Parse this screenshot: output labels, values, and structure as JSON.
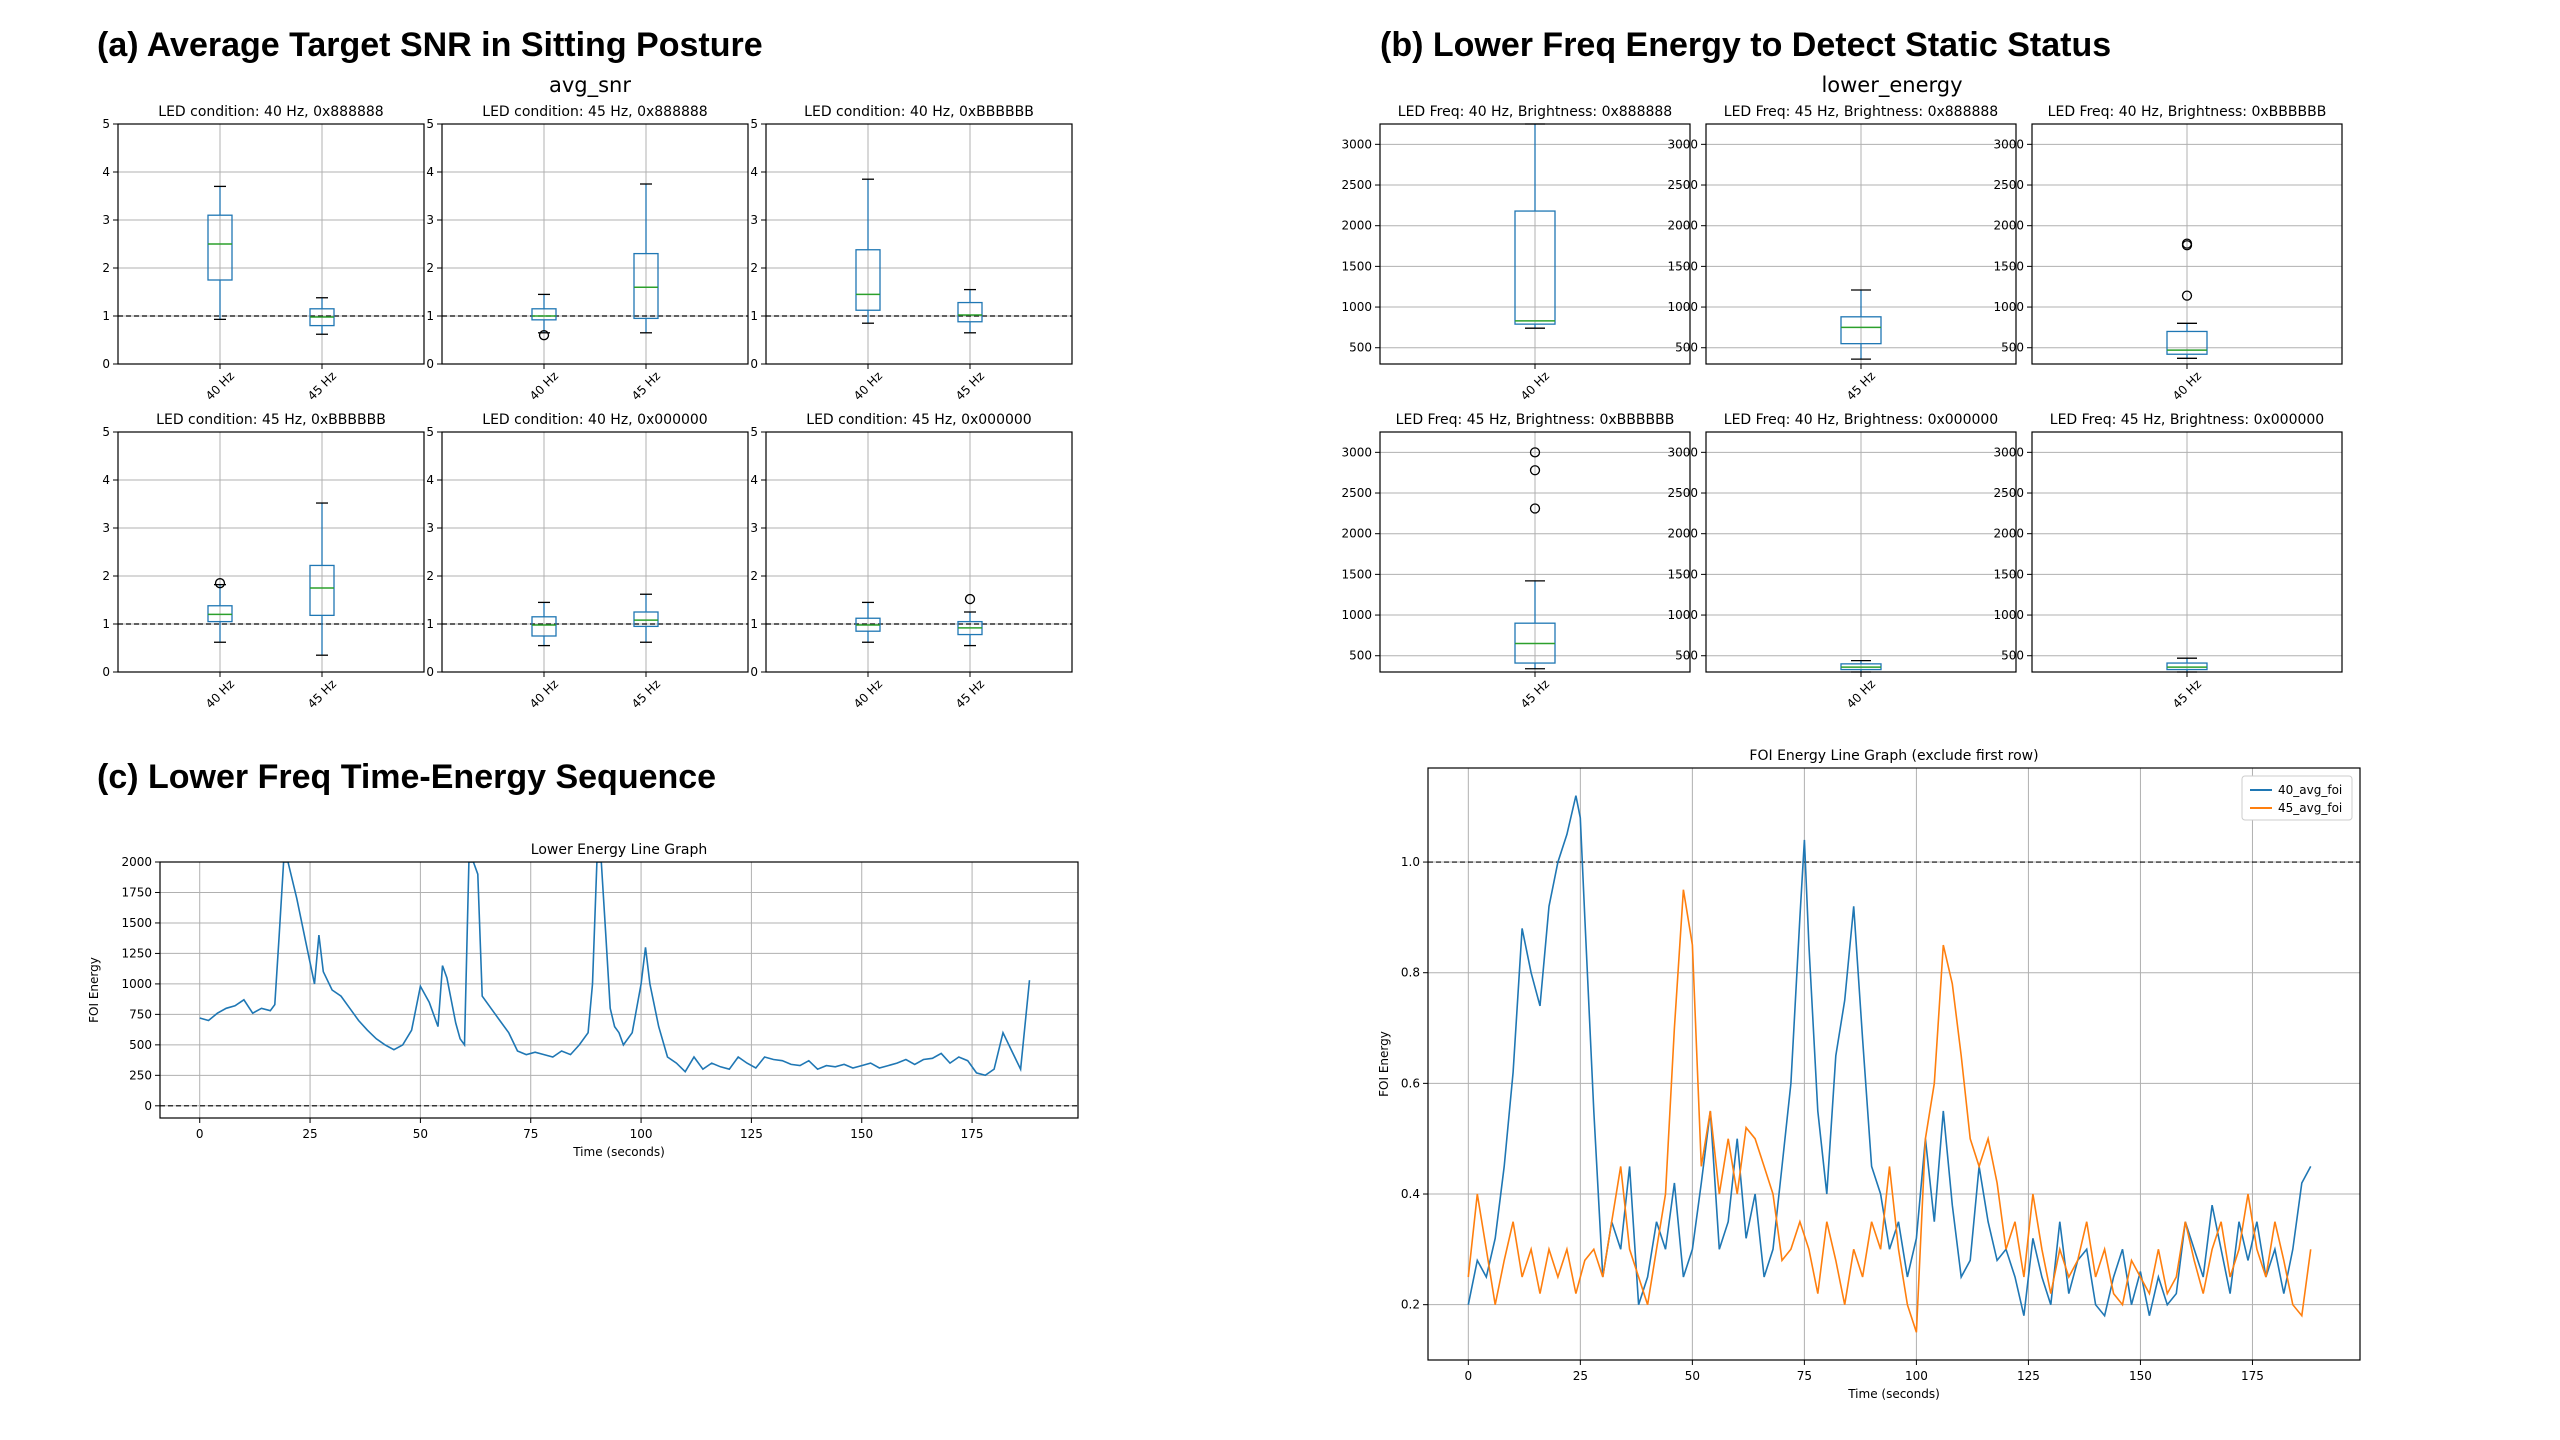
{
  "sections": {
    "a_title": "(a) Average Target SNR in Sitting Posture",
    "b_title": "(b) Lower Freq Energy to Detect Static Status",
    "c_title": "(c) Lower Freq Time-Energy Sequence"
  },
  "colors": {
    "blue": "#1f77b4",
    "orange": "#ff7f0e",
    "median": "#2ca02c",
    "grid": "#b0b0b0"
  },
  "chart_data": [
    {
      "id": "avg_snr",
      "type": "box",
      "title": "avg_snr",
      "ylim": [
        0,
        5
      ],
      "yticks": [
        0,
        1,
        2,
        3,
        4,
        5
      ],
      "ref_line": 1,
      "panels": [
        {
          "title": "LED condition: 40 Hz, 0x888888",
          "categories": [
            "40 Hz",
            "45 Hz"
          ],
          "boxes": [
            {
              "wlo": 0.93,
              "q1": 1.75,
              "med": 2.5,
              "q3": 3.1,
              "whi": 3.7,
              "fliers": []
            },
            {
              "wlo": 0.62,
              "q1": 0.8,
              "med": 0.98,
              "q3": 1.15,
              "whi": 1.38,
              "fliers": []
            }
          ]
        },
        {
          "title": "LED condition: 45 Hz, 0x888888",
          "categories": [
            "40 Hz",
            "45 Hz"
          ],
          "boxes": [
            {
              "wlo": 0.65,
              "q1": 0.92,
              "med": 1.0,
              "q3": 1.15,
              "whi": 1.45,
              "fliers": [
                0.6
              ]
            },
            {
              "wlo": 0.65,
              "q1": 0.95,
              "med": 1.6,
              "q3": 2.3,
              "whi": 3.75,
              "fliers": []
            }
          ]
        },
        {
          "title": "LED condition: 40 Hz, 0xBBBBBB",
          "categories": [
            "40 Hz",
            "45 Hz"
          ],
          "boxes": [
            {
              "wlo": 0.85,
              "q1": 1.12,
              "med": 1.45,
              "q3": 2.38,
              "whi": 3.85,
              "fliers": []
            },
            {
              "wlo": 0.65,
              "q1": 0.88,
              "med": 1.02,
              "q3": 1.28,
              "whi": 1.55,
              "fliers": []
            }
          ]
        },
        {
          "title": "LED condition: 45 Hz, 0xBBBBBB",
          "categories": [
            "40 Hz",
            "45 Hz"
          ],
          "boxes": [
            {
              "wlo": 0.62,
              "q1": 1.05,
              "med": 1.2,
              "q3": 1.38,
              "whi": 1.82,
              "fliers": [
                1.85
              ]
            },
            {
              "wlo": 0.35,
              "q1": 1.18,
              "med": 1.75,
              "q3": 2.22,
              "whi": 3.52,
              "fliers": []
            }
          ]
        },
        {
          "title": "LED condition: 40 Hz, 0x000000",
          "categories": [
            "40 Hz",
            "45 Hz"
          ],
          "boxes": [
            {
              "wlo": 0.55,
              "q1": 0.75,
              "med": 0.98,
              "q3": 1.15,
              "whi": 1.45,
              "fliers": []
            },
            {
              "wlo": 0.62,
              "q1": 0.95,
              "med": 1.08,
              "q3": 1.25,
              "whi": 1.62,
              "fliers": []
            }
          ]
        },
        {
          "title": "LED condition: 45 Hz, 0x000000",
          "categories": [
            "40 Hz",
            "45 Hz"
          ],
          "boxes": [
            {
              "wlo": 0.62,
              "q1": 0.85,
              "med": 0.98,
              "q3": 1.12,
              "whi": 1.45,
              "fliers": []
            },
            {
              "wlo": 0.55,
              "q1": 0.78,
              "med": 0.92,
              "q3": 1.05,
              "whi": 1.25,
              "fliers": [
                1.52
              ]
            }
          ]
        }
      ]
    },
    {
      "id": "lower_energy",
      "type": "box",
      "title": "lower_energy",
      "ylim": [
        300,
        3250
      ],
      "yticks": [
        500,
        1000,
        1500,
        2000,
        2500,
        3000
      ],
      "panels": [
        {
          "title": "LED Freq: 40 Hz, Brightness: 0x888888",
          "categories": [
            "40 Hz"
          ],
          "boxes": [
            {
              "wlo": 740,
              "q1": 790,
              "med": 830,
              "q3": 2180,
              "whi": 3250,
              "fliers": []
            }
          ]
        },
        {
          "title": "LED Freq: 45 Hz, Brightness: 0x888888",
          "categories": [
            "45 Hz"
          ],
          "boxes": [
            {
              "wlo": 360,
              "q1": 550,
              "med": 750,
              "q3": 880,
              "whi": 1210,
              "fliers": []
            }
          ]
        },
        {
          "title": "LED Freq: 40 Hz, Brightness: 0xBBBBBB",
          "categories": [
            "40 Hz"
          ],
          "boxes": [
            {
              "wlo": 370,
              "q1": 420,
              "med": 470,
              "q3": 700,
              "whi": 800,
              "fliers": [
                1140,
                1760,
                1780
              ]
            }
          ]
        },
        {
          "title": "LED Freq: 45 Hz, Brightness: 0xBBBBBB",
          "categories": [
            "45 Hz"
          ],
          "boxes": [
            {
              "wlo": 340,
              "q1": 410,
              "med": 650,
              "q3": 900,
              "whi": 1420,
              "fliers": [
                2310,
                2780,
                3000
              ]
            }
          ]
        },
        {
          "title": "LED Freq: 40 Hz, Brightness: 0x000000",
          "categories": [
            "40 Hz"
          ],
          "boxes": [
            {
              "wlo": 300,
              "q1": 330,
              "med": 360,
              "q3": 400,
              "whi": 440,
              "fliers": []
            }
          ]
        },
        {
          "title": "LED Freq: 45 Hz, Brightness: 0x000000",
          "categories": [
            "45 Hz"
          ],
          "boxes": [
            {
              "wlo": 300,
              "q1": 330,
              "med": 360,
              "q3": 410,
              "whi": 470,
              "fliers": []
            }
          ]
        }
      ]
    },
    {
      "id": "lower_energy_line",
      "type": "line",
      "title": "Lower Energy Line Graph",
      "xlabel": "Time (seconds)",
      "ylabel": "FOI Energy",
      "xlim": [
        -9,
        199
      ],
      "ylim": [
        -100,
        2000
      ],
      "xticks": [
        0,
        25,
        50,
        75,
        100,
        125,
        150,
        175
      ],
      "yticks": [
        0,
        250,
        500,
        750,
        1000,
        1250,
        1500,
        1750,
        2000
      ],
      "ref_line": 0,
      "series": [
        {
          "x": [
            0,
            2,
            4,
            6,
            8,
            10,
            12,
            14,
            16,
            17,
            18,
            19,
            20,
            22,
            24,
            26,
            27,
            28,
            30,
            32,
            34,
            36,
            38,
            40,
            42,
            44,
            46,
            48,
            50,
            52,
            54,
            55,
            56,
            58,
            59,
            60,
            61,
            62,
            63,
            64,
            66,
            68,
            70,
            72,
            74,
            76,
            78,
            80,
            82,
            84,
            86,
            88,
            89,
            90,
            91,
            92,
            93,
            94,
            95,
            96,
            98,
            100,
            101,
            102,
            104,
            106,
            108,
            110,
            112,
            114,
            116,
            118,
            120,
            122,
            124,
            126,
            128,
            130,
            132,
            134,
            136,
            138,
            140,
            142,
            144,
            146,
            148,
            150,
            152,
            154,
            156,
            158,
            160,
            162,
            164,
            166,
            168,
            170,
            172,
            174,
            176,
            178,
            180,
            182,
            184,
            186,
            188
          ],
          "y": [
            720,
            700,
            760,
            800,
            820,
            870,
            760,
            800,
            780,
            830,
            1400,
            2000,
            2000,
            1700,
            1350,
            1000,
            1400,
            1100,
            950,
            900,
            800,
            700,
            620,
            550,
            500,
            460,
            500,
            620,
            980,
            850,
            650,
            1150,
            1050,
            680,
            550,
            500,
            2000,
            2000,
            1900,
            900,
            800,
            700,
            600,
            450,
            420,
            440,
            420,
            400,
            450,
            420,
            500,
            600,
            1000,
            2000,
            2000,
            1400,
            800,
            650,
            600,
            500,
            600,
            1000,
            1300,
            1000,
            650,
            400,
            350,
            280,
            400,
            300,
            350,
            320,
            300,
            400,
            350,
            310,
            400,
            380,
            370,
            340,
            330,
            370,
            300,
            330,
            320,
            340,
            310,
            330,
            350,
            310,
            330,
            350,
            380,
            340,
            380,
            390,
            430,
            350,
            400,
            370,
            270,
            250,
            300,
            600,
            450,
            300,
            1030
          ]
        }
      ]
    },
    {
      "id": "foi_energy_line",
      "type": "line",
      "title": "FOI Energy Line Graph (exclude first row)",
      "xlabel": "Time (seconds)",
      "ylabel": "FOI Energy",
      "xlim": [
        -9,
        199
      ],
      "ylim": [
        0.1,
        1.17
      ],
      "xticks": [
        0,
        25,
        50,
        75,
        100,
        125,
        150,
        175
      ],
      "yticks": [
        0.2,
        0.4,
        0.6,
        0.8,
        1.0
      ],
      "ref_line": 1.0,
      "legend_position": "top-right",
      "series": [
        {
          "name": "40_avg_foi",
          "x": [
            0,
            2,
            4,
            6,
            8,
            10,
            12,
            14,
            16,
            18,
            20,
            22,
            24,
            25,
            26,
            28,
            30,
            32,
            34,
            36,
            38,
            40,
            42,
            44,
            46,
            48,
            50,
            52,
            54,
            56,
            58,
            60,
            62,
            64,
            66,
            68,
            70,
            72,
            74,
            75,
            76,
            78,
            80,
            82,
            84,
            86,
            88,
            90,
            92,
            94,
            96,
            98,
            100,
            102,
            104,
            106,
            108,
            110,
            112,
            114,
            116,
            118,
            120,
            122,
            124,
            126,
            128,
            130,
            132,
            134,
            136,
            138,
            140,
            142,
            144,
            146,
            148,
            150,
            152,
            154,
            156,
            158,
            160,
            162,
            164,
            166,
            168,
            170,
            172,
            174,
            176,
            178,
            180,
            182,
            184,
            186,
            188
          ],
          "y": [
            0.2,
            0.28,
            0.25,
            0.32,
            0.45,
            0.62,
            0.88,
            0.8,
            0.74,
            0.92,
            1.0,
            1.05,
            1.12,
            1.08,
            0.9,
            0.55,
            0.25,
            0.35,
            0.3,
            0.45,
            0.2,
            0.25,
            0.35,
            0.3,
            0.42,
            0.25,
            0.3,
            0.42,
            0.55,
            0.3,
            0.35,
            0.5,
            0.32,
            0.4,
            0.25,
            0.3,
            0.45,
            0.6,
            0.9,
            1.04,
            0.85,
            0.55,
            0.4,
            0.65,
            0.75,
            0.92,
            0.68,
            0.45,
            0.4,
            0.3,
            0.35,
            0.25,
            0.32,
            0.5,
            0.35,
            0.55,
            0.38,
            0.25,
            0.28,
            0.45,
            0.35,
            0.28,
            0.3,
            0.25,
            0.18,
            0.32,
            0.25,
            0.2,
            0.35,
            0.22,
            0.28,
            0.3,
            0.2,
            0.18,
            0.25,
            0.3,
            0.2,
            0.26,
            0.18,
            0.25,
            0.2,
            0.22,
            0.35,
            0.3,
            0.25,
            0.38,
            0.3,
            0.22,
            0.35,
            0.28,
            0.35,
            0.25,
            0.3,
            0.22,
            0.3,
            0.42,
            0.45
          ]
        },
        {
          "name": "45_avg_foi",
          "x": [
            0,
            2,
            4,
            6,
            8,
            10,
            12,
            14,
            16,
            18,
            20,
            22,
            24,
            26,
            28,
            30,
            32,
            34,
            36,
            38,
            40,
            42,
            44,
            46,
            48,
            50,
            52,
            54,
            56,
            58,
            60,
            62,
            64,
            66,
            68,
            70,
            72,
            74,
            76,
            78,
            80,
            82,
            84,
            86,
            88,
            90,
            92,
            94,
            96,
            98,
            100,
            102,
            104,
            106,
            108,
            110,
            112,
            114,
            116,
            118,
            120,
            122,
            124,
            126,
            128,
            130,
            132,
            134,
            136,
            138,
            140,
            142,
            144,
            146,
            148,
            150,
            152,
            154,
            156,
            158,
            160,
            162,
            164,
            166,
            168,
            170,
            172,
            174,
            176,
            178,
            180,
            182,
            184,
            186,
            188
          ],
          "y": [
            0.25,
            0.4,
            0.3,
            0.2,
            0.28,
            0.35,
            0.25,
            0.3,
            0.22,
            0.3,
            0.25,
            0.3,
            0.22,
            0.28,
            0.3,
            0.25,
            0.35,
            0.45,
            0.3,
            0.25,
            0.2,
            0.3,
            0.4,
            0.7,
            0.95,
            0.85,
            0.45,
            0.55,
            0.4,
            0.5,
            0.4,
            0.52,
            0.5,
            0.45,
            0.4,
            0.28,
            0.3,
            0.35,
            0.3,
            0.22,
            0.35,
            0.28,
            0.2,
            0.3,
            0.25,
            0.35,
            0.3,
            0.45,
            0.3,
            0.2,
            0.15,
            0.5,
            0.6,
            0.85,
            0.78,
            0.65,
            0.5,
            0.45,
            0.5,
            0.42,
            0.3,
            0.35,
            0.25,
            0.4,
            0.3,
            0.22,
            0.3,
            0.25,
            0.28,
            0.35,
            0.25,
            0.3,
            0.22,
            0.2,
            0.28,
            0.25,
            0.22,
            0.3,
            0.22,
            0.25,
            0.35,
            0.28,
            0.22,
            0.3,
            0.35,
            0.25,
            0.3,
            0.4,
            0.3,
            0.25,
            0.35,
            0.28,
            0.2,
            0.18,
            0.3
          ]
        }
      ]
    }
  ]
}
